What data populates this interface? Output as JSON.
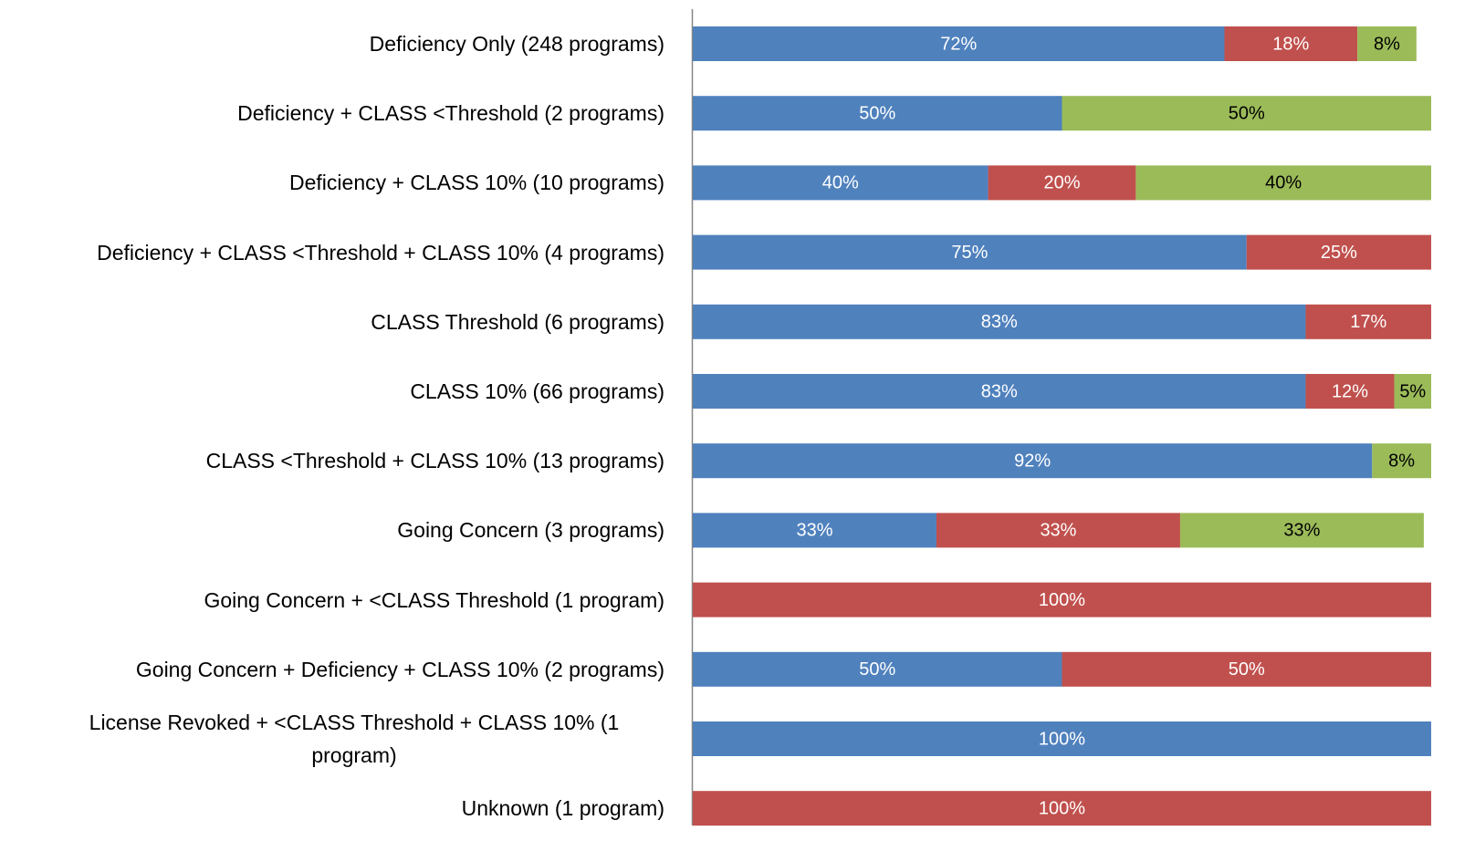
{
  "chart_data": {
    "type": "stacked-bar-horizontal",
    "categories": [
      "Deficiency Only (248 programs)",
      "Deficiency + CLASS <Threshold (2 programs)",
      "Deficiency + CLASS 10% (10 programs)",
      "Deficiency + CLASS <Threshold + CLASS 10% (4 programs)",
      "CLASS Threshold (6 programs)",
      "CLASS 10% (66 programs)",
      "CLASS <Threshold + CLASS 10% (13 programs)",
      "Going Concern (3 programs)",
      "Going Concern + <CLASS Threshold (1 program)",
      "Going Concern + Deficiency + CLASS 10% (2 programs)",
      "License Revoked + <CLASS Threshold + CLASS 10% (1 program)",
      "Unknown (1 program)"
    ],
    "series": [
      {
        "color": "#4f81bd",
        "label_color": "#ffffff",
        "values": [
          72,
          50,
          40,
          75,
          83,
          83,
          92,
          33,
          null,
          50,
          100,
          null
        ],
        "value_labels": [
          "72%",
          "50%",
          "40%",
          "75%",
          "83%",
          "83%",
          "92%",
          "33%",
          null,
          "50%",
          "100%",
          null
        ]
      },
      {
        "color": "#c0504d",
        "label_color": "#ffffff",
        "values": [
          18,
          null,
          20,
          25,
          17,
          12,
          null,
          33,
          100,
          50,
          null,
          100
        ],
        "value_labels": [
          "18%",
          null,
          "20%",
          "25%",
          "17%",
          "12%",
          null,
          "33%",
          "100%",
          "50%",
          null,
          "100%"
        ]
      },
      {
        "color": "#9bbb59",
        "label_color": "#000000",
        "values": [
          8,
          50,
          40,
          null,
          null,
          5,
          8,
          33,
          null,
          null,
          null,
          null
        ],
        "value_labels": [
          "8%",
          "50%",
          "40%",
          null,
          null,
          "5%",
          "8%",
          "33%",
          null,
          null,
          null,
          null
        ]
      }
    ],
    "xlim": [
      0,
      100
    ]
  }
}
